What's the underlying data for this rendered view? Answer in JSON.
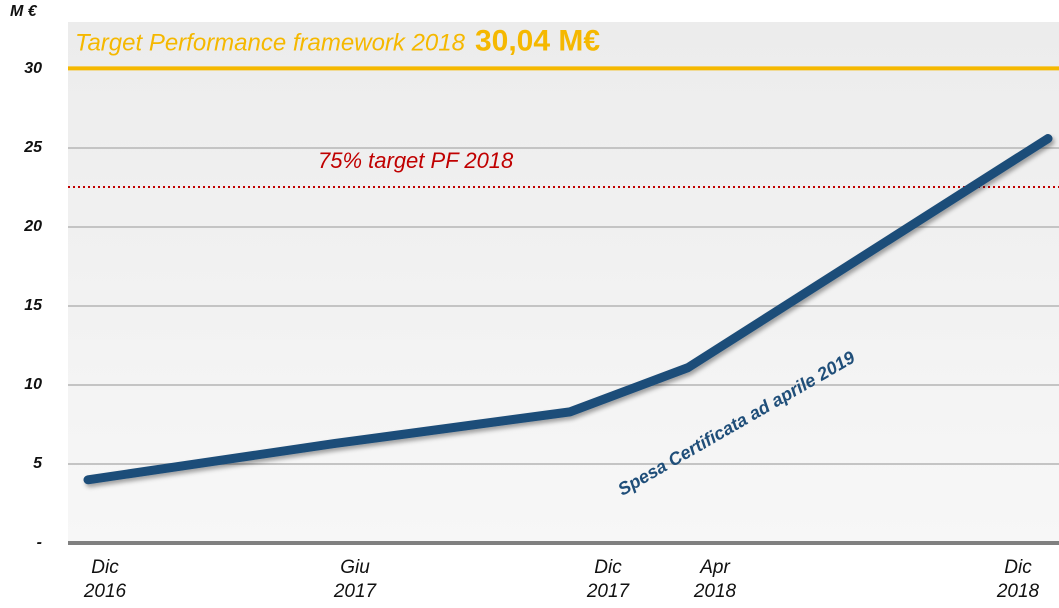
{
  "chart_data": {
    "type": "line",
    "y_unit": "M €",
    "categories": [
      "Dic 2016",
      "Giu 2017",
      "Dic 2017",
      "Apr 2018",
      "Dic 2018"
    ],
    "series": [
      {
        "name": "Spesa Certificata ad aprile 2019",
        "color": "#1f4e79",
        "values": [
          4.0,
          6.3,
          8.3,
          11.1,
          25.6
        ]
      }
    ],
    "ylim": [
      0,
      33
    ],
    "yticks": [
      {
        "value": 0,
        "label": "-"
      },
      5,
      10,
      15,
      20,
      25,
      30
    ],
    "grid": true,
    "reference_lines": [
      {
        "value": 30.04,
        "label": "Target Performance framework 2018",
        "value_label": "30,04 M€",
        "color": "#f5b800"
      },
      {
        "value": 22.53,
        "label": "75% target PF 2018",
        "color": "#c00000"
      }
    ]
  }
}
